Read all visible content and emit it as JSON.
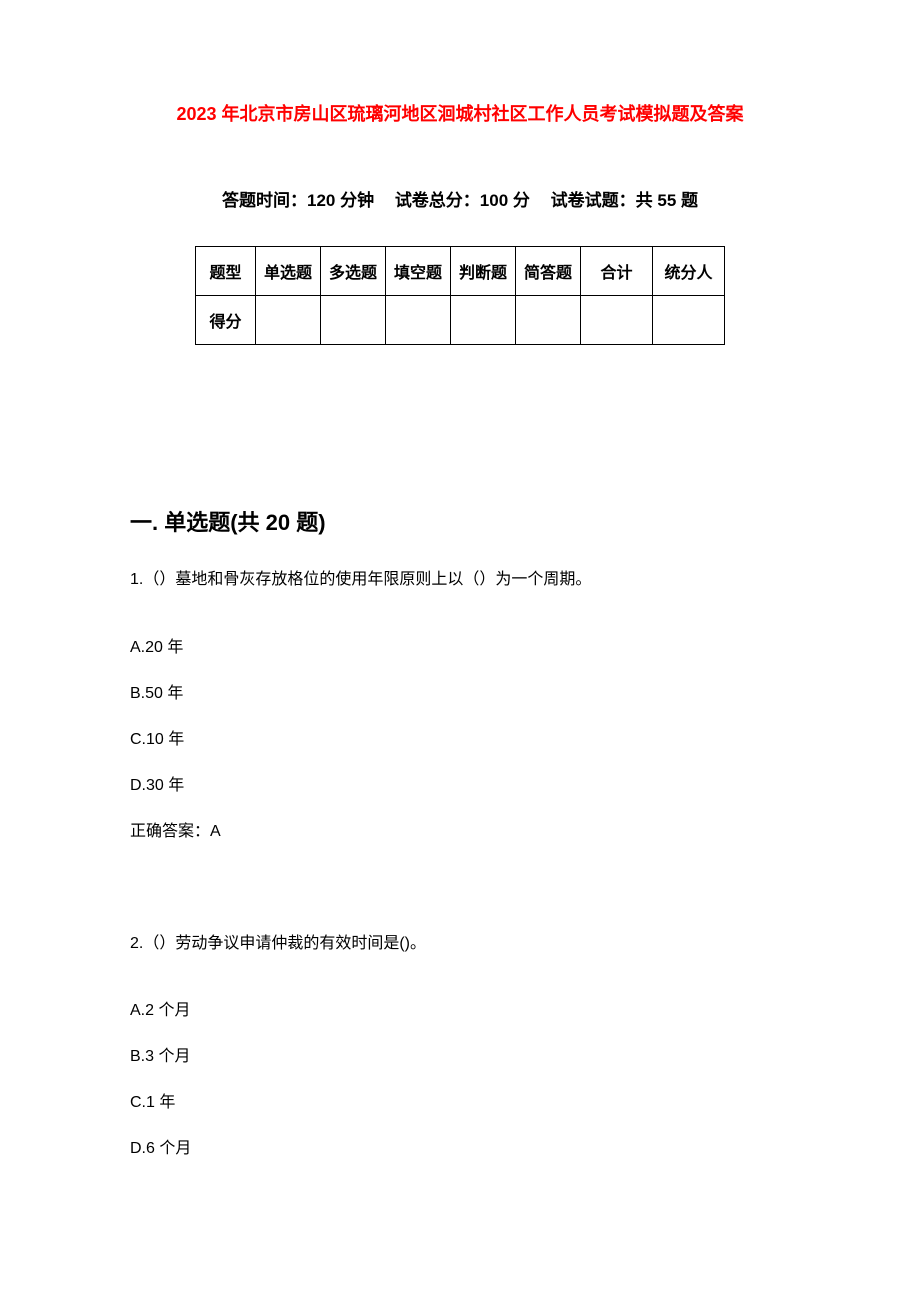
{
  "title": "2023 年北京市房山区琉璃河地区洄城村社区工作人员考试模拟题及答案",
  "meta": {
    "time_label": "答题时间：120 分钟",
    "total_label": "试卷总分：100 分",
    "count_label": "试卷试题：共 55 题"
  },
  "score_table": {
    "columns": [
      "题型",
      "单选题",
      "多选题",
      "填空题",
      "判断题",
      "简答题",
      "合计",
      "统分人"
    ],
    "row_label": "得分",
    "border_color": "#000000",
    "font_size": 16
  },
  "section1": {
    "heading": "一. 单选题(共 20 题)"
  },
  "q1": {
    "text": "1.（）墓地和骨灰存放格位的使用年限原则上以（）为一个周期。",
    "options": {
      "a": "A.20 年",
      "b": "B.50 年",
      "c": "C.10 年",
      "d": "D.30 年"
    },
    "answer": "正确答案：A"
  },
  "q2": {
    "text": "2.（）劳动争议申请仲裁的有效时间是()。",
    "options": {
      "a": "A.2 个月",
      "b": "B.3 个月",
      "c": "C.1 年",
      "d": "D.6 个月"
    }
  },
  "colors": {
    "title_color": "#ff0000",
    "text_color": "#000000",
    "background": "#ffffff"
  }
}
